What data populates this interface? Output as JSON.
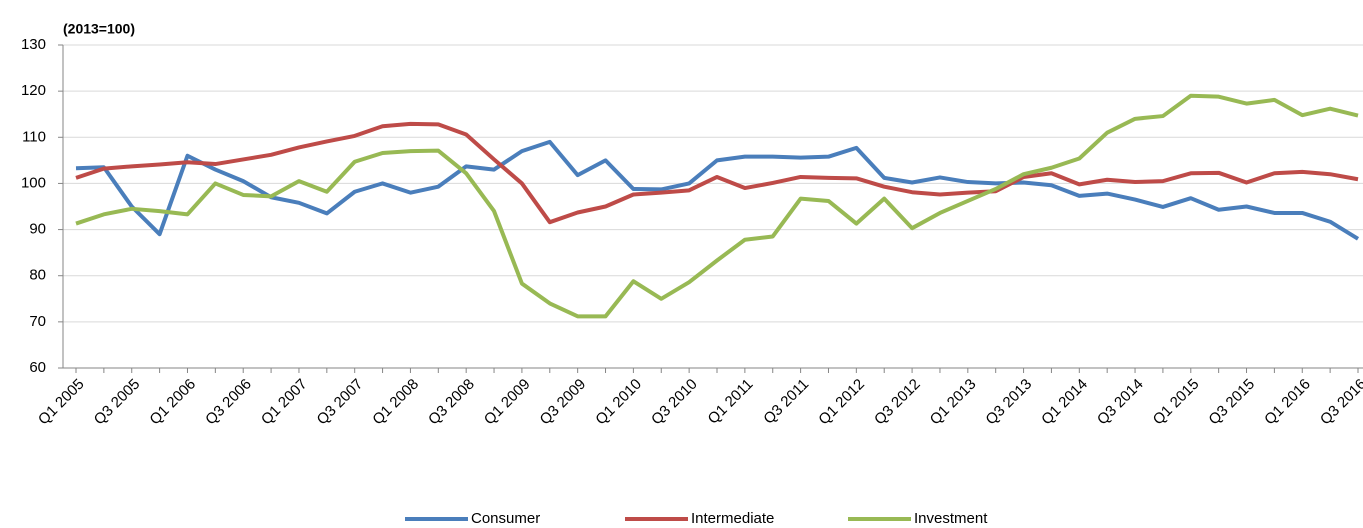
{
  "chart_data": {
    "type": "line",
    "title": "(2013=100)",
    "categories": [
      "Q1 2005",
      null,
      "Q3 2005",
      null,
      "Q1 2006",
      null,
      "Q3 2006",
      null,
      "Q1 2007",
      null,
      "Q3 2007",
      null,
      "Q1 2008",
      null,
      "Q3 2008",
      null,
      "Q1 2009",
      null,
      "Q3 2009",
      null,
      "Q1 2010",
      null,
      "Q3 2010",
      null,
      "Q1 2011",
      null,
      "Q3 2011",
      null,
      "Q1 2012",
      null,
      "Q3 2012",
      null,
      "Q1 2013",
      null,
      "Q3 2013",
      null,
      "Q1 2014",
      null,
      "Q3 2014",
      null,
      "Q1 2015",
      null,
      "Q3 2015",
      null,
      "Q1 2016",
      null,
      "Q3 2016"
    ],
    "series": [
      {
        "name": "Consumer",
        "color": "#4a7ebb",
        "values": [
          103.3,
          103.5,
          95,
          89,
          106,
          103,
          100.5,
          97,
          95.8,
          93.5,
          98.2,
          100,
          98,
          99.3,
          103.7,
          103,
          107,
          109,
          101.8,
          105,
          98.8,
          98.7,
          100,
          105,
          105.8,
          105.8,
          105.6,
          105.8,
          107.7,
          101.2,
          100.2,
          101.3,
          100.3,
          100,
          100.2,
          99.6,
          97.3,
          97.8,
          96.5,
          94.9,
          96.8,
          94.3,
          95,
          93.6,
          93.6,
          91.7,
          88
        ]
      },
      {
        "name": "Intermediate",
        "color": "#be4b48",
        "values": [
          101.2,
          103.2,
          103.7,
          104.1,
          104.6,
          104.2,
          105.2,
          106.2,
          107.8,
          109.1,
          110.3,
          112.4,
          112.9,
          112.8,
          110.6,
          105.2,
          100,
          91.6,
          93.7,
          95,
          97.6,
          98,
          98.5,
          101.4,
          99,
          100.1,
          101.4,
          101.2,
          101.1,
          99.3,
          98.1,
          97.6,
          98,
          98.3,
          101.4,
          102.2,
          99.8,
          100.8,
          100.3,
          100.5,
          102.2,
          102.3,
          100.2,
          102.2,
          102.5,
          102,
          100.9
        ]
      },
      {
        "name": "Investment",
        "color": "#98b954",
        "values": [
          91.3,
          93.3,
          94.5,
          94,
          93.3,
          100,
          97.5,
          97.2,
          100.5,
          98.2,
          104.7,
          106.6,
          107,
          107.1,
          102.2,
          94,
          78.3,
          74,
          71.2,
          71.2,
          78.8,
          75,
          78.6,
          83.3,
          87.8,
          88.5,
          96.7,
          96.2,
          91.3,
          96.7,
          90.3,
          93.6,
          96.2,
          98.8,
          102,
          103.4,
          105.4,
          111,
          114,
          114.6,
          119,
          118.8,
          117.3,
          118.1,
          114.8,
          116.2,
          114.7
        ]
      }
    ],
    "ylim": [
      60,
      130
    ],
    "yticks": [
      60,
      70,
      80,
      90,
      100,
      110,
      120,
      130
    ],
    "grid": true,
    "legend": "bottom"
  }
}
